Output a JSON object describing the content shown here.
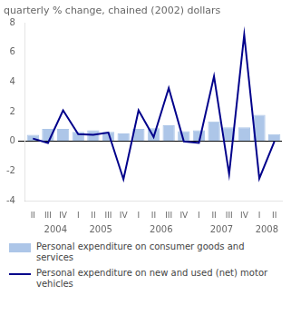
{
  "chart_data": {
    "type": "bar",
    "title": "quarterly % change, chained (2002) dollars",
    "categories": [
      "II",
      "III",
      "IV",
      "I",
      "II",
      "III",
      "IV",
      "I",
      "II",
      "III",
      "IV",
      "I",
      "II",
      "III",
      "IV",
      "I",
      "II"
    ],
    "series": [
      {
        "name": "Personal expenditure on consumer goods and\nservices",
        "type": "bar",
        "color": "#adc6e8",
        "values": [
          0.45,
          0.85,
          0.85,
          0.65,
          0.75,
          0.65,
          0.55,
          0.85,
          0.9,
          1.1,
          0.7,
          0.75,
          1.35,
          0.95,
          0.95,
          1.8,
          0.5
        ]
      },
      {
        "name": "Personal expenditure on new and used (net) motor\nvehicles",
        "type": "line",
        "color": "#00008B",
        "values": [
          0.2,
          -0.1,
          2.1,
          0.5,
          0.45,
          0.6,
          -2.55,
          2.1,
          0.3,
          3.6,
          0.0,
          -0.1,
          4.4,
          -2.2,
          7.2,
          -2.5,
          0.0
        ]
      }
    ],
    "annotations": [
      {
        "text": "2004",
        "x": 1.5
      },
      {
        "text": "2005",
        "x": 4.5
      },
      {
        "text": "2006",
        "x": 8.5
      },
      {
        "text": "2007",
        "x": 12.5
      },
      {
        "text": "2008",
        "x": 15.5
      }
    ],
    "ylim": [
      -4,
      8
    ],
    "yticks": [
      -4,
      -2,
      0,
      2,
      4,
      6,
      8
    ],
    "grid": false,
    "legend": "bottom"
  }
}
